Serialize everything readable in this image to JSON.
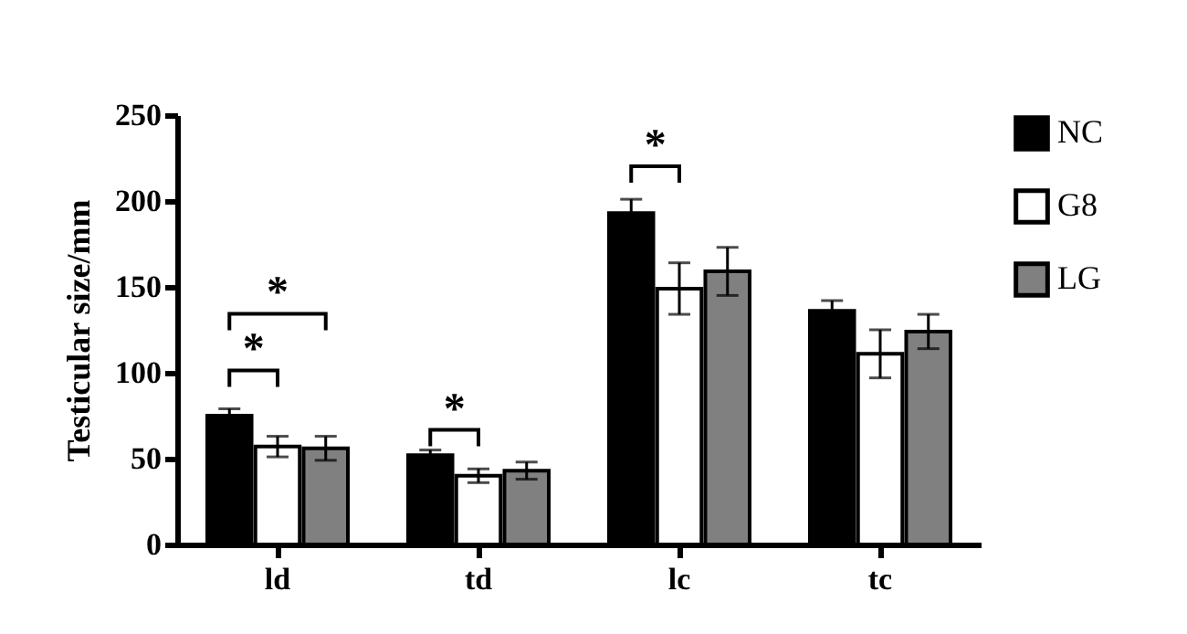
{
  "chart_data": {
    "type": "bar",
    "ylabel": "Testicular size/mm",
    "categories": [
      "ld",
      "td",
      "lc",
      "tc"
    ],
    "series": [
      {
        "name": "NC",
        "color": "#000000",
        "values": [
          75,
          52,
          193,
          136
        ],
        "errors": [
          4,
          3,
          8,
          6
        ]
      },
      {
        "name": "G8",
        "color": "#ffffff",
        "values": [
          57,
          40,
          149,
          111
        ],
        "errors": [
          6,
          4,
          15,
          14
        ]
      },
      {
        "name": "LG",
        "color": "#808080",
        "values": [
          56,
          43,
          159,
          124
        ],
        "errors": [
          7,
          5,
          14,
          10
        ]
      }
    ],
    "annotations": [
      "*",
      "*",
      "*",
      "*"
    ],
    "ylim": [
      0,
      250
    ],
    "yticks": [
      0,
      50,
      100,
      150,
      200,
      250
    ],
    "grid": false,
    "legend": "top right"
  }
}
